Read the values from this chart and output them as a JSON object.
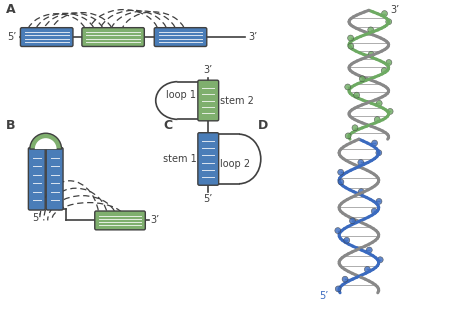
{
  "blue": "#4A7DB8",
  "green": "#7FAF6E",
  "line_color": "#404040",
  "bg": "#ffffff",
  "label_A": "A",
  "label_B": "B",
  "label_C": "C",
  "label_D": "D",
  "5p": "5’",
  "3p": "3’",
  "loop1": "loop 1",
  "loop2": "loop 2",
  "stem1": "stem 1",
  "stem2": "stem 2"
}
